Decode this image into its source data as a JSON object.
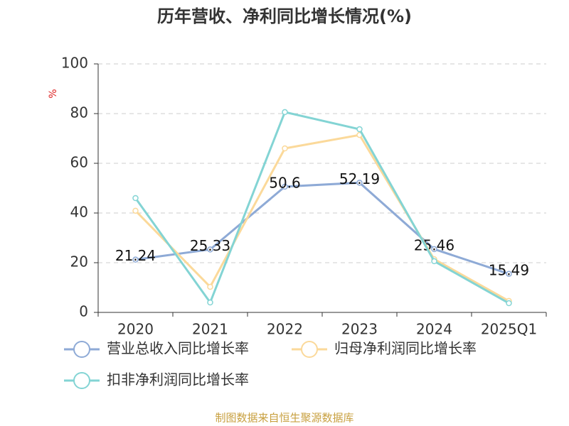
{
  "chart_data": {
    "type": "line",
    "title": "历年营收、净利同比增长情况(%)",
    "y_label": "%",
    "source": "制图数据来自恒生聚源数据库",
    "categories": [
      "2020",
      "2021",
      "2022",
      "2023",
      "2024",
      "2025Q1"
    ],
    "series": [
      {
        "name": "营业总收入同比增长率",
        "color": "#8eaad6",
        "values": [
          21.24,
          25.33,
          50.6,
          52.19,
          25.46,
          15.49
        ],
        "show_labels": true
      },
      {
        "name": "归母净利润同比增长率",
        "color": "#fbd99a",
        "values": [
          40.9,
          10.3,
          66.0,
          71.4,
          21.4,
          4.6
        ],
        "show_labels": false
      },
      {
        "name": "扣非净利润同比增长率",
        "color": "#83d4d4",
        "values": [
          46.0,
          4.0,
          80.6,
          73.7,
          20.6,
          3.7
        ],
        "show_labels": false
      }
    ],
    "ylim": [
      0,
      100
    ],
    "yticks": [
      0,
      20,
      40,
      60,
      80,
      100
    ],
    "grid": true
  }
}
